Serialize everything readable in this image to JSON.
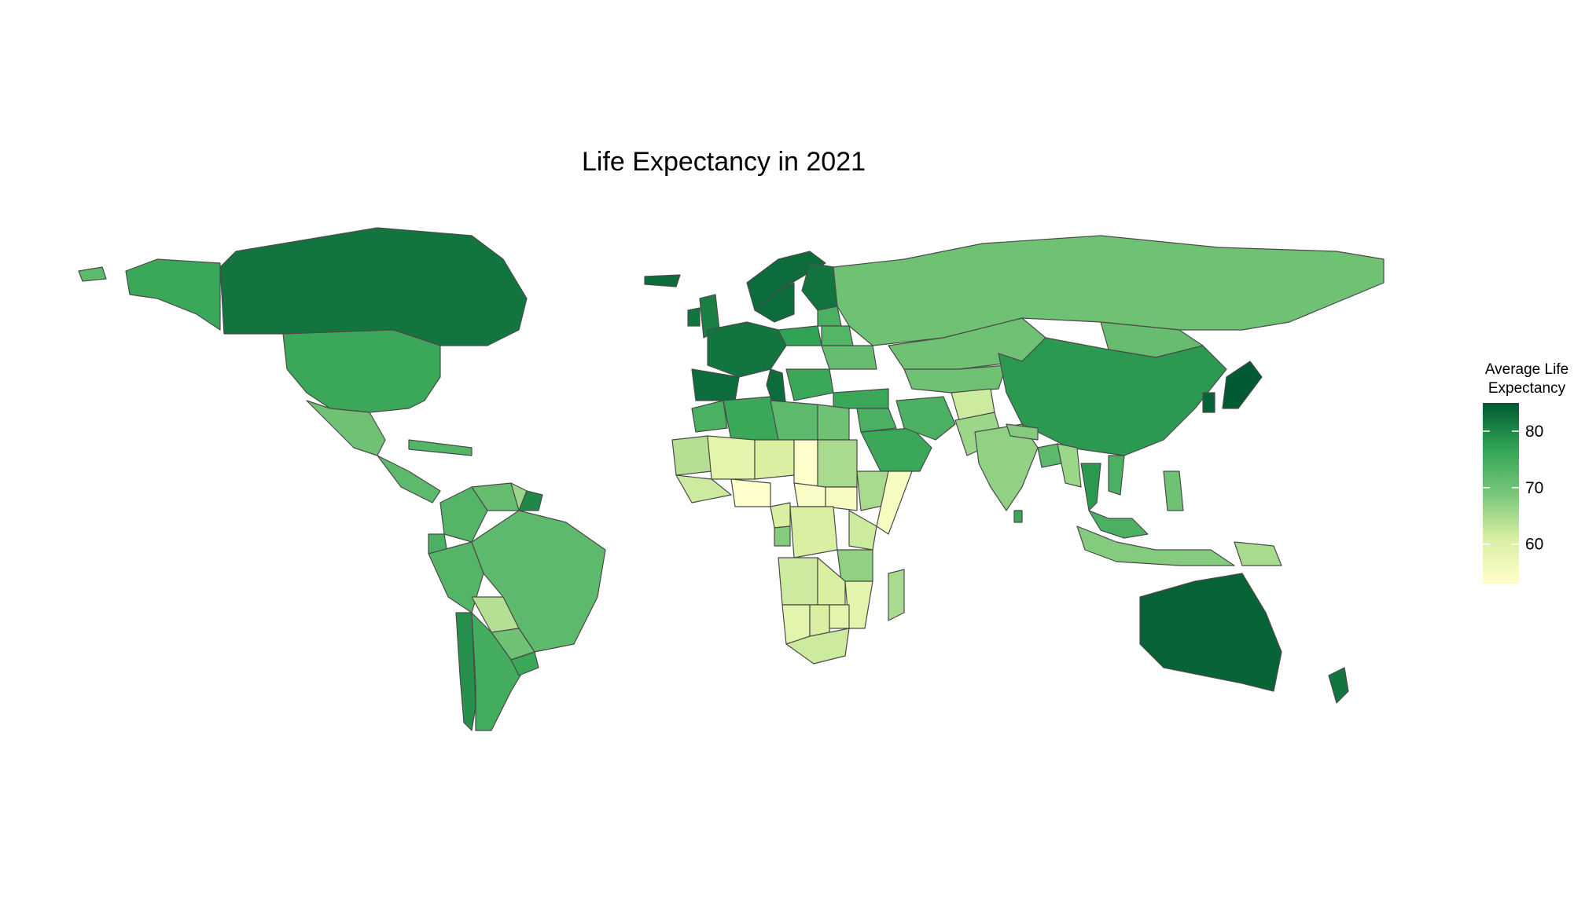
{
  "chart_data": {
    "type": "choropleth",
    "title": "Life Expectancy in 2021",
    "legend": {
      "title_lines": [
        "Average Life",
        "Expectancy"
      ],
      "placement": "right",
      "min": 53,
      "max": 85,
      "ticks": [
        {
          "value": 60,
          "label": "60"
        },
        {
          "value": 70,
          "label": "70"
        },
        {
          "value": 80,
          "label": "80"
        }
      ],
      "color_low": "#ffffcc",
      "color_high": "#005a32"
    },
    "regions": [
      {
        "name": "Canada",
        "value": 82
      },
      {
        "name": "Alaska (United States)",
        "value": 76
      },
      {
        "name": "Greenland",
        "value": 72
      },
      {
        "name": "United States",
        "value": 76
      },
      {
        "name": "Mexico",
        "value": 70
      },
      {
        "name": "Central America",
        "value": 72
      },
      {
        "name": "Cuba",
        "value": 73
      },
      {
        "name": "Colombia",
        "value": 73
      },
      {
        "name": "Venezuela",
        "value": 71
      },
      {
        "name": "Guyana",
        "value": 66
      },
      {
        "name": "French Guiana",
        "value": 80
      },
      {
        "name": "Ecuador",
        "value": 74
      },
      {
        "name": "Peru",
        "value": 73
      },
      {
        "name": "Brazil",
        "value": 72
      },
      {
        "name": "Bolivia",
        "value": 64
      },
      {
        "name": "Paraguay",
        "value": 70
      },
      {
        "name": "Chile",
        "value": 79
      },
      {
        "name": "Argentina",
        "value": 75
      },
      {
        "name": "Uruguay",
        "value": 76
      },
      {
        "name": "Iceland",
        "value": 83
      },
      {
        "name": "United Kingdom",
        "value": 81
      },
      {
        "name": "Ireland",
        "value": 82
      },
      {
        "name": "Norway",
        "value": 83
      },
      {
        "name": "Sweden",
        "value": 83
      },
      {
        "name": "Finland",
        "value": 82
      },
      {
        "name": "Western Europe",
        "value": 82
      },
      {
        "name": "Iberia",
        "value": 83
      },
      {
        "name": "Italy",
        "value": 83
      },
      {
        "name": "Poland",
        "value": 77
      },
      {
        "name": "Baltics",
        "value": 74
      },
      {
        "name": "Belarus",
        "value": 73
      },
      {
        "name": "Ukraine",
        "value": 71
      },
      {
        "name": "Balkans",
        "value": 76
      },
      {
        "name": "Turkey",
        "value": 76
      },
      {
        "name": "Russia",
        "value": 70
      },
      {
        "name": "Kazakhstan",
        "value": 70
      },
      {
        "name": "Central Asia",
        "value": 70
      },
      {
        "name": "Mongolia",
        "value": 71
      },
      {
        "name": "China",
        "value": 78
      },
      {
        "name": "Japan",
        "value": 85
      },
      {
        "name": "South Korea",
        "value": 84
      },
      {
        "name": "Middle East",
        "value": 74
      },
      {
        "name": "Saudi Arabia",
        "value": 76
      },
      {
        "name": "Iran",
        "value": 74
      },
      {
        "name": "Afghanistan",
        "value": 62
      },
      {
        "name": "Pakistan",
        "value": 66
      },
      {
        "name": "India",
        "value": 67
      },
      {
        "name": "Nepal",
        "value": 68
      },
      {
        "name": "Bangladesh",
        "value": 72
      },
      {
        "name": "Sri Lanka",
        "value": 76
      },
      {
        "name": "Myanmar",
        "value": 66
      },
      {
        "name": "Thailand",
        "value": 78
      },
      {
        "name": "Vietnam",
        "value": 74
      },
      {
        "name": "Malaysia",
        "value": 74
      },
      {
        "name": "Indonesia",
        "value": 68
      },
      {
        "name": "Philippines",
        "value": 70
      },
      {
        "name": "Papua New Guinea",
        "value": 65
      },
      {
        "name": "Australia",
        "value": 84
      },
      {
        "name": "New Zealand",
        "value": 82
      },
      {
        "name": "Morocco",
        "value": 74
      },
      {
        "name": "Algeria",
        "value": 76
      },
      {
        "name": "Libya",
        "value": 72
      },
      {
        "name": "Egypt",
        "value": 70
      },
      {
        "name": "Mauritania",
        "value": 64
      },
      {
        "name": "Mali",
        "value": 59
      },
      {
        "name": "Niger",
        "value": 61
      },
      {
        "name": "Chad",
        "value": 53
      },
      {
        "name": "Sudan",
        "value": 65
      },
      {
        "name": "West Africa",
        "value": 62
      },
      {
        "name": "Nigeria",
        "value": 53
      },
      {
        "name": "Central African Republic",
        "value": 54
      },
      {
        "name": "South Sudan",
        "value": 55
      },
      {
        "name": "Ethiopia",
        "value": 65
      },
      {
        "name": "Somalia",
        "value": 55
      },
      {
        "name": "Cameroon",
        "value": 61
      },
      {
        "name": "Gabon",
        "value": 68
      },
      {
        "name": "Congo Basin",
        "value": 61
      },
      {
        "name": "Kenya",
        "value": 62
      },
      {
        "name": "Tanzania",
        "value": 67
      },
      {
        "name": "Angola",
        "value": 62
      },
      {
        "name": "Zambia",
        "value": 61
      },
      {
        "name": "Mozambique",
        "value": 59
      },
      {
        "name": "Namibia",
        "value": 59
      },
      {
        "name": "Botswana",
        "value": 61
      },
      {
        "name": "Zimbabwe",
        "value": 59
      },
      {
        "name": "South Africa",
        "value": 62
      },
      {
        "name": "Madagascar",
        "value": 65
      }
    ]
  }
}
